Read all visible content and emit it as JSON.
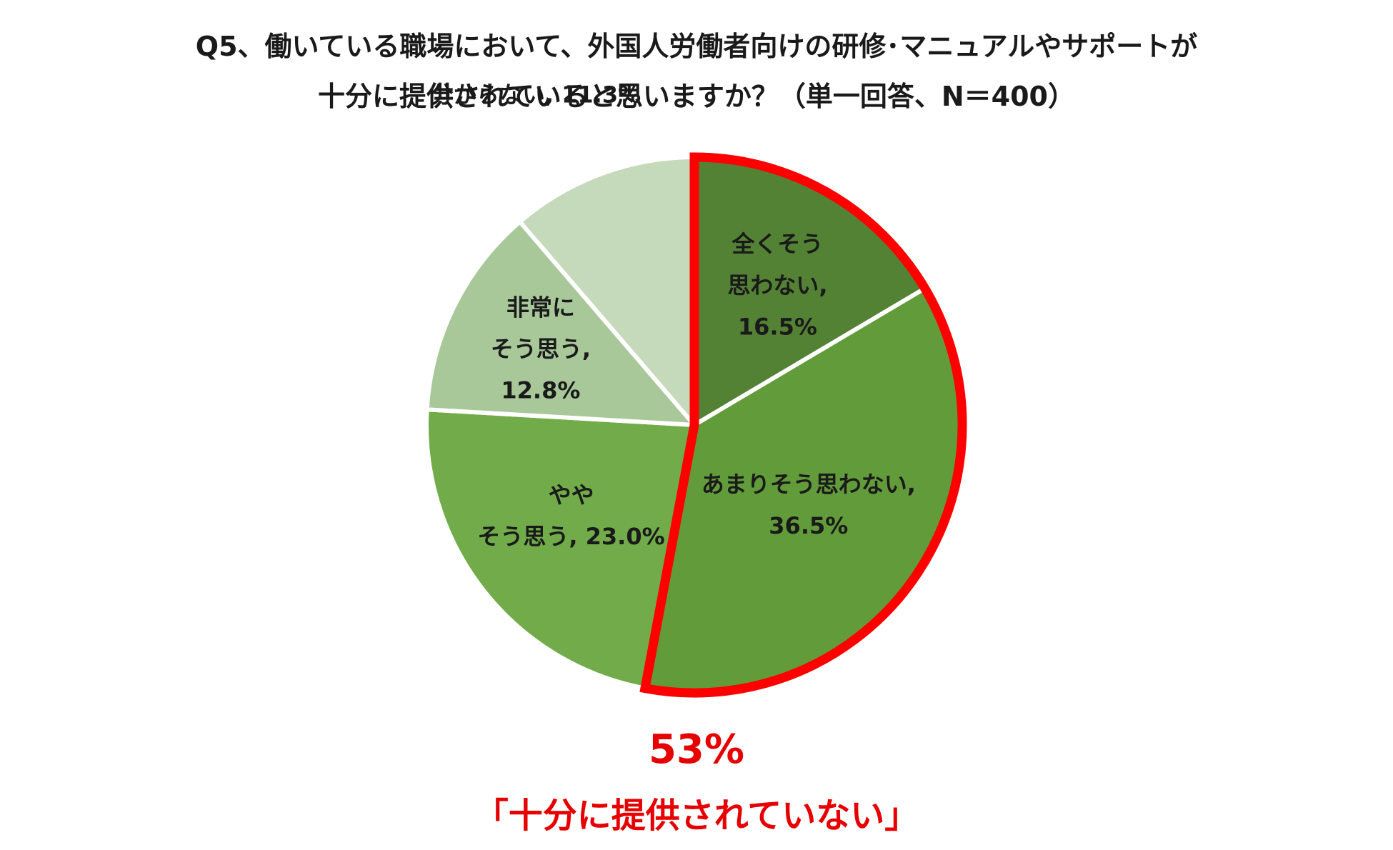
{
  "chart_data": {
    "type": "pie",
    "title_lines": [
      "Q5、働いている職場において、外国人労働者向けの研修･マニュアルやサポートが",
      "十分に提供されていると思いますか？（単一回答、N＝400）"
    ],
    "slices": [
      {
        "label_lines": [
          "全くそう",
          "思わない,",
          "16.5%"
        ],
        "value": 16.5,
        "color": "#548235"
      },
      {
        "label_lines": [
          "あまりそう思わない,",
          "36.5%"
        ],
        "value": 36.5,
        "color": "#629c3a"
      },
      {
        "label_lines": [
          "やや",
          "そう思う, 23.0%"
        ],
        "value": 23.0,
        "color": "#72ac4a"
      },
      {
        "label_lines": [
          "非常に",
          "そう思う,",
          "12.8%"
        ],
        "value": 12.8,
        "color": "#a9c89a"
      },
      {
        "label_lines": [
          "分からない, 11.3%"
        ],
        "value": 11.3,
        "color": "#c5d9bb"
      }
    ],
    "highlight": {
      "slices": [
        0,
        1
      ],
      "color": "#ff0000",
      "value_text": "53%",
      "caption": "「十分に提供されていない」"
    }
  }
}
